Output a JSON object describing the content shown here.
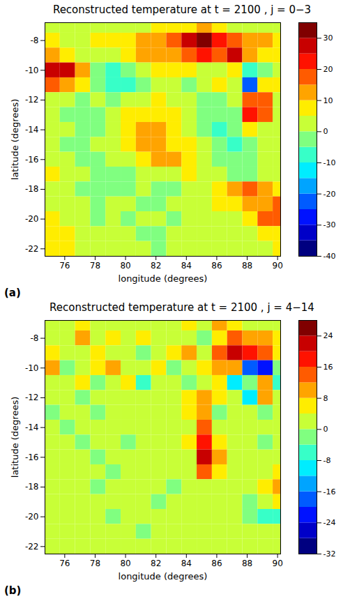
{
  "chart_data": [
    {
      "type": "heatmap",
      "title": "Reconstructed temperature at t = 2100 , j = 0−3",
      "panel_label": "(a)",
      "x_label": "longitude (degrees)",
      "y_label": "latitude (degrees)",
      "xlim": [
        74.7,
        90.2
      ],
      "ylim": [
        -22.5,
        -6.8
      ],
      "xticks": [
        76,
        78,
        80,
        82,
        84,
        86,
        88,
        90
      ],
      "yticks": [
        -22,
        -20,
        -18,
        -16,
        -14,
        -12,
        -10,
        -8
      ],
      "color": "jet",
      "lon_edges": [
        74.7,
        75.7,
        76.7,
        77.7,
        78.7,
        79.7,
        80.7,
        81.7,
        82.7,
        83.7,
        84.7,
        85.7,
        86.7,
        87.7,
        88.7,
        89.7,
        90.2
      ],
      "lat_edges": [
        -6.8,
        -7.5,
        -8.5,
        -9.5,
        -10.5,
        -11.5,
        -12.5,
        -13.5,
        -14.5,
        -15.5,
        -16.5,
        -17.5,
        -18.5,
        -19.5,
        -20.5,
        -21.5,
        -22.5
      ],
      "values": [
        [
          3,
          2,
          2,
          3,
          2,
          3,
          3,
          5,
          8,
          8,
          10,
          5,
          3,
          2,
          3,
          2
        ],
        [
          5,
          3,
          2,
          5,
          8,
          8,
          10,
          12,
          18,
          28,
          30,
          22,
          15,
          12,
          10,
          8
        ],
        [
          10,
          8,
          3,
          2,
          0,
          5,
          12,
          10,
          10,
          15,
          22,
          18,
          25,
          12,
          8,
          5
        ],
        [
          25,
          25,
          12,
          -5,
          -8,
          -5,
          0,
          5,
          8,
          5,
          2,
          0,
          5,
          -10,
          -5,
          0
        ],
        [
          15,
          10,
          5,
          -5,
          -10,
          -8,
          -3,
          0,
          0,
          -3,
          0,
          5,
          0,
          -25,
          5,
          5
        ],
        [
          2,
          0,
          -3,
          0,
          -5,
          0,
          3,
          5,
          3,
          0,
          -3,
          -5,
          0,
          18,
          15,
          3
        ],
        [
          0,
          -3,
          -5,
          -5,
          0,
          5,
          8,
          8,
          5,
          3,
          -5,
          -5,
          -3,
          20,
          15,
          0
        ],
        [
          3,
          0,
          -5,
          -5,
          0,
          5,
          10,
          10,
          8,
          3,
          -3,
          -8,
          -5,
          5,
          3,
          0
        ],
        [
          0,
          -3,
          -5,
          0,
          3,
          5,
          10,
          10,
          8,
          5,
          0,
          -5,
          -8,
          -3,
          0,
          3
        ],
        [
          3,
          0,
          -3,
          -5,
          0,
          3,
          8,
          10,
          12,
          5,
          3,
          -3,
          -5,
          -5,
          0,
          3
        ],
        [
          5,
          3,
          0,
          -3,
          -5,
          -3,
          0,
          3,
          3,
          5,
          3,
          0,
          -5,
          -3,
          0,
          3
        ],
        [
          3,
          0,
          -3,
          -3,
          -5,
          -3,
          0,
          -3,
          -5,
          0,
          3,
          5,
          10,
          15,
          10,
          8
        ],
        [
          0,
          3,
          0,
          -3,
          0,
          0,
          -3,
          -3,
          0,
          0,
          3,
          5,
          8,
          10,
          12,
          15
        ],
        [
          5,
          0,
          3,
          -3,
          0,
          -3,
          0,
          0,
          -3,
          0,
          3,
          0,
          3,
          5,
          15,
          18
        ],
        [
          8,
          5,
          3,
          0,
          3,
          0,
          -3,
          -3,
          0,
          3,
          0,
          0,
          0,
          3,
          5,
          8
        ],
        [
          5,
          8,
          3,
          0,
          3,
          0,
          0,
          -3,
          0,
          0,
          3,
          0,
          3,
          0,
          3,
          5
        ]
      ],
      "colorbar": {
        "lim": [
          -40,
          35
        ],
        "levels": [
          -40,
          -35,
          -30,
          -25,
          -20,
          -15,
          -10,
          -5,
          0,
          5,
          10,
          15,
          20,
          25,
          30,
          35
        ],
        "ticks": [
          -40,
          -30,
          -20,
          -10,
          0,
          10,
          20,
          30
        ]
      }
    },
    {
      "type": "heatmap",
      "title": "Reconstructed temperature at t = 2100 , j = 4−14",
      "panel_label": "(b)",
      "x_label": "longitude (degrees)",
      "y_label": "latitude (degrees)",
      "xlim": [
        74.7,
        90.2
      ],
      "ylim": [
        -22.5,
        -6.8
      ],
      "xticks": [
        76,
        78,
        80,
        82,
        84,
        86,
        88,
        90
      ],
      "yticks": [
        -22,
        -20,
        -18,
        -16,
        -14,
        -12,
        -10,
        -8
      ],
      "color": "jet",
      "lon_edges": [
        74.7,
        75.7,
        76.7,
        77.7,
        78.7,
        79.7,
        80.7,
        81.7,
        82.7,
        83.7,
        84.7,
        85.7,
        86.7,
        87.7,
        88.7,
        89.7,
        90.2
      ],
      "lat_edges": [
        -6.8,
        -7.5,
        -8.5,
        -9.5,
        -10.5,
        -11.5,
        -12.5,
        -13.5,
        -14.5,
        -15.5,
        -16.5,
        -17.5,
        -18.5,
        -19.5,
        -20.5,
        -21.5,
        -22.5
      ],
      "values": [
        [
          3,
          0,
          5,
          0,
          3,
          0,
          3,
          0,
          3,
          5,
          3,
          10,
          5,
          3,
          0,
          3
        ],
        [
          0,
          3,
          8,
          3,
          5,
          0,
          5,
          0,
          3,
          3,
          -3,
          5,
          15,
          8,
          10,
          5
        ],
        [
          5,
          0,
          3,
          5,
          0,
          3,
          -3,
          0,
          5,
          8,
          3,
          15,
          20,
          18,
          15,
          5
        ],
        [
          8,
          -3,
          3,
          5,
          8,
          3,
          0,
          5,
          -3,
          3,
          5,
          10,
          8,
          -20,
          -24,
          -3
        ],
        [
          0,
          3,
          5,
          -3,
          0,
          5,
          -5,
          3,
          0,
          -3,
          3,
          5,
          -12,
          -3,
          10,
          -8
        ],
        [
          0,
          0,
          -3,
          3,
          0,
          0,
          3,
          0,
          0,
          5,
          8,
          5,
          0,
          -12,
          8,
          3
        ],
        [
          -3,
          0,
          0,
          -3,
          0,
          0,
          0,
          0,
          3,
          5,
          10,
          -3,
          3,
          0,
          -3,
          0
        ],
        [
          0,
          -3,
          0,
          0,
          0,
          0,
          0,
          3,
          0,
          3,
          12,
          3,
          0,
          3,
          0,
          0
        ],
        [
          0,
          0,
          -3,
          0,
          0,
          -3,
          0,
          0,
          0,
          5,
          18,
          5,
          0,
          0,
          -3,
          0
        ],
        [
          0,
          0,
          0,
          -3,
          0,
          0,
          0,
          0,
          0,
          3,
          20,
          10,
          0,
          0,
          0,
          0
        ],
        [
          3,
          0,
          0,
          0,
          -3,
          0,
          0,
          0,
          0,
          3,
          15,
          5,
          0,
          0,
          3,
          5
        ],
        [
          0,
          0,
          0,
          -3,
          0,
          0,
          0,
          0,
          -3,
          0,
          3,
          0,
          0,
          0,
          5,
          10
        ],
        [
          0,
          3,
          0,
          0,
          0,
          3,
          0,
          -3,
          0,
          0,
          0,
          0,
          0,
          -3,
          0,
          5
        ],
        [
          0,
          0,
          0,
          0,
          -3,
          0,
          0,
          0,
          0,
          0,
          0,
          0,
          0,
          -3,
          -5,
          -8
        ],
        [
          3,
          0,
          0,
          0,
          0,
          0,
          -3,
          0,
          0,
          0,
          0,
          0,
          0,
          0,
          0,
          0
        ],
        [
          0,
          3,
          0,
          0,
          0,
          0,
          0,
          0,
          0,
          0,
          0,
          0,
          0,
          0,
          0,
          0
        ]
      ],
      "colorbar": {
        "lim": [
          -32,
          28
        ],
        "levels": [
          -32,
          -28,
          -24,
          -20,
          -16,
          -12,
          -8,
          -4,
          0,
          4,
          8,
          12,
          16,
          20,
          24,
          28
        ],
        "ticks": [
          -32,
          -24,
          -16,
          -8,
          0,
          8,
          16,
          24
        ]
      }
    }
  ]
}
